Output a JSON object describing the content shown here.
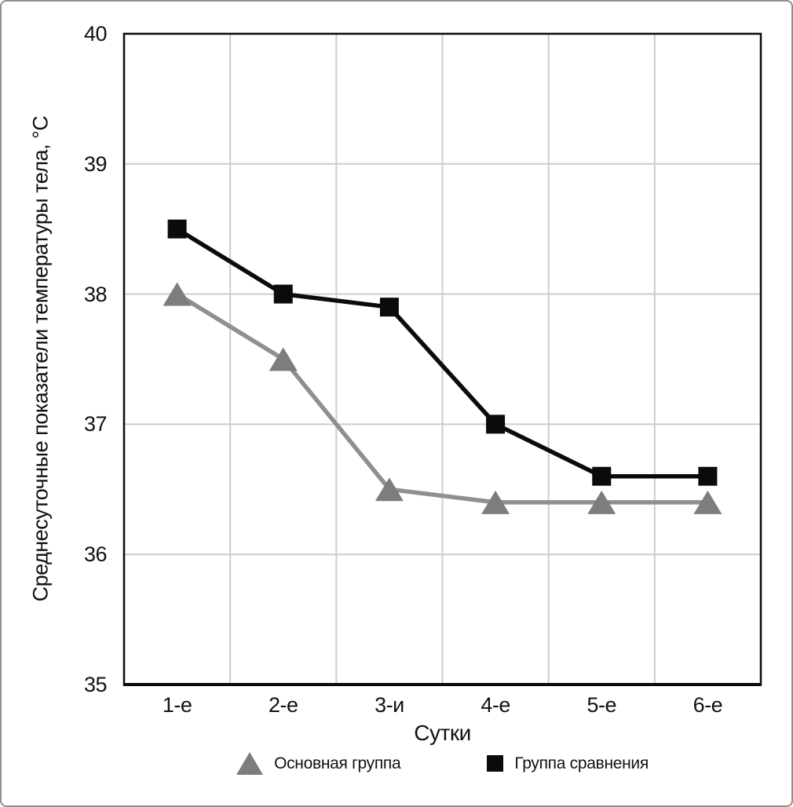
{
  "frame": {
    "background_color": "#ffffff",
    "border_color": "#8f8f8f"
  },
  "chart_data": {
    "type": "line",
    "categories": [
      "1-е",
      "2-е",
      "3-и",
      "4-е",
      "5-е",
      "6-е"
    ],
    "series": [
      {
        "name": "Основная группа",
        "marker": "triangle",
        "color": "#7d7d7d",
        "line_color": "#8f8f8f",
        "values": [
          38.0,
          37.5,
          36.5,
          36.4,
          36.4,
          36.4
        ]
      },
      {
        "name": "Группа сравнения",
        "marker": "square",
        "color": "#0b0b0b",
        "line_color": "#0b0b0b",
        "values": [
          38.5,
          38.0,
          37.9,
          37.0,
          36.6,
          36.6
        ]
      }
    ],
    "xlabel": "Сутки",
    "ylabel": "Среднесуточные показатели температуры тела, °С",
    "ylim": [
      35,
      40
    ],
    "y_ticks": [
      40,
      39,
      38,
      37,
      36,
      35
    ],
    "grid": true,
    "gridline_color": "#cccccc",
    "axis_color": "#0b0b0b",
    "legend_position": "bottom"
  }
}
